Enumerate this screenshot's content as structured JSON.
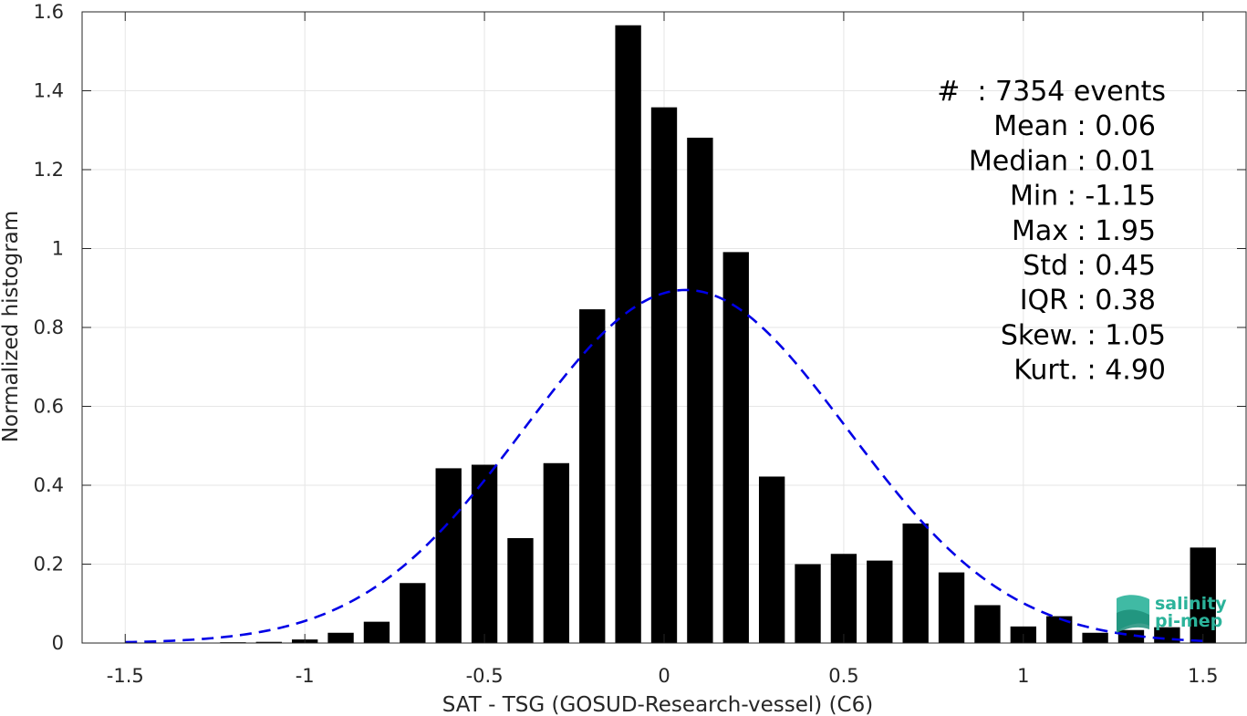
{
  "chart_data": {
    "type": "bar",
    "xlabel": "SAT - TSG (GOSUD-Research-vessel) (C6)",
    "ylabel": "Normalized histogram",
    "xlim": [
      -1.62,
      1.62
    ],
    "ylim": [
      0,
      1.6
    ],
    "x_ticks": [
      -1.5,
      -1,
      -0.5,
      0,
      0.5,
      1,
      1.5
    ],
    "x_tick_labels": [
      "-1.5",
      "-1",
      "-0.5",
      "0",
      "0.5",
      "1",
      "1.5"
    ],
    "y_ticks": [
      0,
      0.2,
      0.4,
      0.6,
      0.8,
      1,
      1.2,
      1.4,
      1.6
    ],
    "y_tick_labels": [
      "0",
      "0.2",
      "0.4",
      "0.6",
      "0.8",
      "1",
      "1.2",
      "1.4",
      "1.6"
    ],
    "grid": true,
    "bar_color": "#000000",
    "bin_width": 0.1,
    "bar_width_fraction": 0.72,
    "bin_centers": [
      -1.5,
      -1.4,
      -1.3,
      -1.2,
      -1.1,
      -1.0,
      -0.9,
      -0.8,
      -0.7,
      -0.6,
      -0.5,
      -0.4,
      -0.3,
      -0.2,
      -0.1,
      0.0,
      0.1,
      0.2,
      0.3,
      0.4,
      0.5,
      0.6,
      0.7,
      0.8,
      0.9,
      1.0,
      1.1,
      1.2,
      1.3,
      1.4,
      1.5
    ],
    "values": [
      0,
      0,
      0,
      0.002,
      0.003,
      0.009,
      0.026,
      0.054,
      0.152,
      0.443,
      0.452,
      0.266,
      0.456,
      0.846,
      1.566,
      1.358,
      1.281,
      0.991,
      0.422,
      0.2,
      0.226,
      0.209,
      0.303,
      0.179,
      0.096,
      0.042,
      0.068,
      0.026,
      0.033,
      0.04,
      0.242
    ],
    "fit_curve": {
      "type": "normal",
      "mean": 0.06,
      "std": 0.45,
      "peak": 0.895,
      "color": "#0000e6",
      "style": "dashed"
    },
    "annotation": [
      "#  : 7354 events",
      "Mean : 0.06",
      "Median : 0.01",
      "Min : -1.15",
      "Max : 1.95",
      "Std : 0.45",
      "IQR : 0.38",
      "Skew. : 1.05",
      "Kurt. : 4.90"
    ]
  },
  "logo": {
    "line1": "salinity",
    "line2": "pi-mep",
    "color": "#2bb39a"
  }
}
